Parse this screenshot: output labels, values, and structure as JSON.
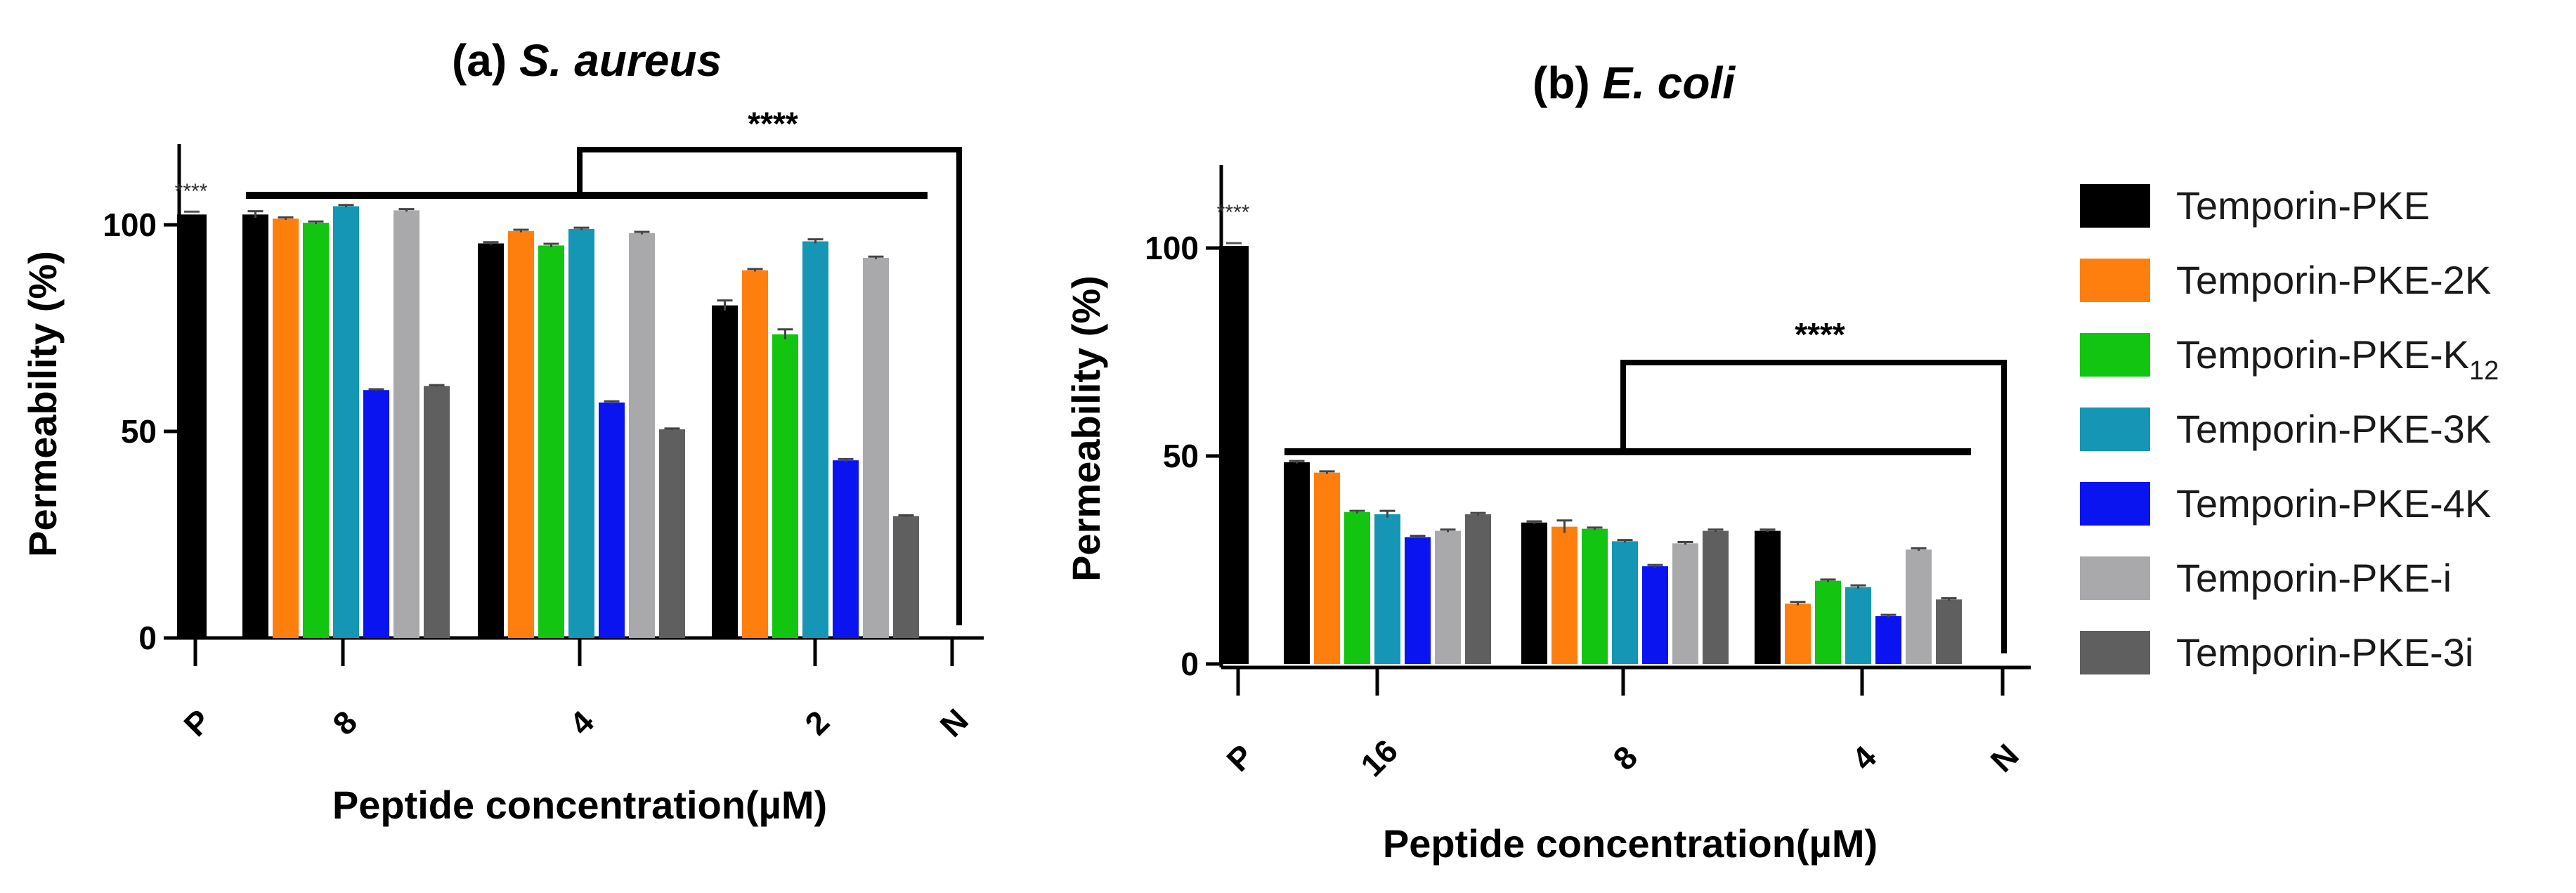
{
  "chart_data": [
    {
      "type": "bar",
      "panel": "a",
      "title_prefix": "(a) ",
      "title_organism": "S. aureus",
      "xlabel_prefix": "Peptide concentration(",
      "xlabel_mu": "µ",
      "xlabel_suffix": "M)",
      "ylabel": "Permeability (%)",
      "ylim": [
        0,
        120
      ],
      "yticks": [
        0,
        50,
        100
      ],
      "xtick_labels": [
        "P",
        "8",
        "4",
        "2",
        "N"
      ],
      "positive_control": 102.5,
      "positive_stars": "****",
      "bracket_stars": "****",
      "categories": [
        "8",
        "4",
        "2"
      ],
      "series": [
        {
          "name": "Temporin-PKE",
          "values": [
            102.5,
            95.5,
            80.5
          ],
          "errors": [
            0.8,
            0.3,
            1.2
          ]
        },
        {
          "name": "Temporin-PKE-2K",
          "values": [
            101.5,
            98.5,
            89.0
          ],
          "errors": [
            0.3,
            0.3,
            0.3
          ]
        },
        {
          "name": "Temporin-PKE-K12",
          "values": [
            100.5,
            95.0,
            73.5
          ],
          "errors": [
            0.3,
            0.4,
            1.2
          ]
        },
        {
          "name": "Temporin-PKE-3K",
          "values": [
            104.5,
            99.0,
            96.0
          ],
          "errors": [
            0.3,
            0.3,
            0.5
          ]
        },
        {
          "name": "Temporin-PKE-4K",
          "values": [
            60.0,
            57.0,
            43.0
          ],
          "errors": [
            0.2,
            0.3,
            0.3
          ]
        },
        {
          "name": "Temporin-PKE-i",
          "values": [
            103.5,
            98.0,
            92.0
          ],
          "errors": [
            0.3,
            0.3,
            0.3
          ]
        },
        {
          "name": "Temporin-PKE-3i",
          "values": [
            61.0,
            50.5,
            29.5
          ],
          "errors": [
            0.2,
            0.2,
            0.2
          ]
        }
      ]
    },
    {
      "type": "bar",
      "panel": "b",
      "title_prefix": "(b) ",
      "title_organism": "E. coli",
      "xlabel_prefix": "Peptide concentration(",
      "xlabel_mu": "µ",
      "xlabel_suffix": "M)",
      "ylabel": "Permeability (%)",
      "ylim": [
        0,
        120
      ],
      "yticks": [
        0,
        50,
        100
      ],
      "xtick_labels": [
        "P",
        "16",
        "8",
        "4",
        "N"
      ],
      "positive_control": 100.5,
      "positive_stars": "****",
      "bracket_stars": "****",
      "categories": [
        "16",
        "8",
        "4"
      ],
      "series": [
        {
          "name": "Temporin-PKE",
          "values": [
            48.5,
            34.0,
            32.0
          ],
          "errors": [
            0.3,
            0.3,
            0.3
          ]
        },
        {
          "name": "Temporin-PKE-2K",
          "values": [
            46.0,
            33.0,
            14.5
          ],
          "errors": [
            0.3,
            1.5,
            0.4
          ]
        },
        {
          "name": "Temporin-PKE-K12",
          "values": [
            36.5,
            32.5,
            20.0
          ],
          "errors": [
            0.3,
            0.3,
            0.3
          ]
        },
        {
          "name": "Temporin-PKE-3K",
          "values": [
            36.0,
            29.5,
            18.5
          ],
          "errors": [
            0.8,
            0.3,
            0.4
          ]
        },
        {
          "name": "Temporin-PKE-4K",
          "values": [
            30.5,
            23.5,
            11.5
          ],
          "errors": [
            0.3,
            0.3,
            0.3
          ]
        },
        {
          "name": "Temporin-PKE-i",
          "values": [
            32.0,
            29.0,
            27.5
          ],
          "errors": [
            0.3,
            0.3,
            0.3
          ]
        },
        {
          "name": "Temporin-PKE-3i",
          "values": [
            36.0,
            32.0,
            15.5
          ],
          "errors": [
            0.3,
            0.3,
            0.3
          ]
        }
      ]
    }
  ],
  "legend": [
    {
      "base": "Temporin-PKE",
      "sub": "",
      "color": "#000000"
    },
    {
      "base": "Temporin-PKE-2K",
      "sub": "",
      "color": "#ff7f0e"
    },
    {
      "base": "Temporin-PKE-K",
      "sub": "12",
      "color": "#11c511"
    },
    {
      "base": "Temporin-PKE-3K",
      "sub": "",
      "color": "#1496b4"
    },
    {
      "base": "Temporin-PKE-4K",
      "sub": "",
      "color": "#0a14f0"
    },
    {
      "base": "Temporin-PKE-i",
      "sub": "",
      "color": "#a9a9ab"
    },
    {
      "base": "Temporin-PKE-3i",
      "sub": "",
      "color": "#5f5f5f"
    }
  ]
}
